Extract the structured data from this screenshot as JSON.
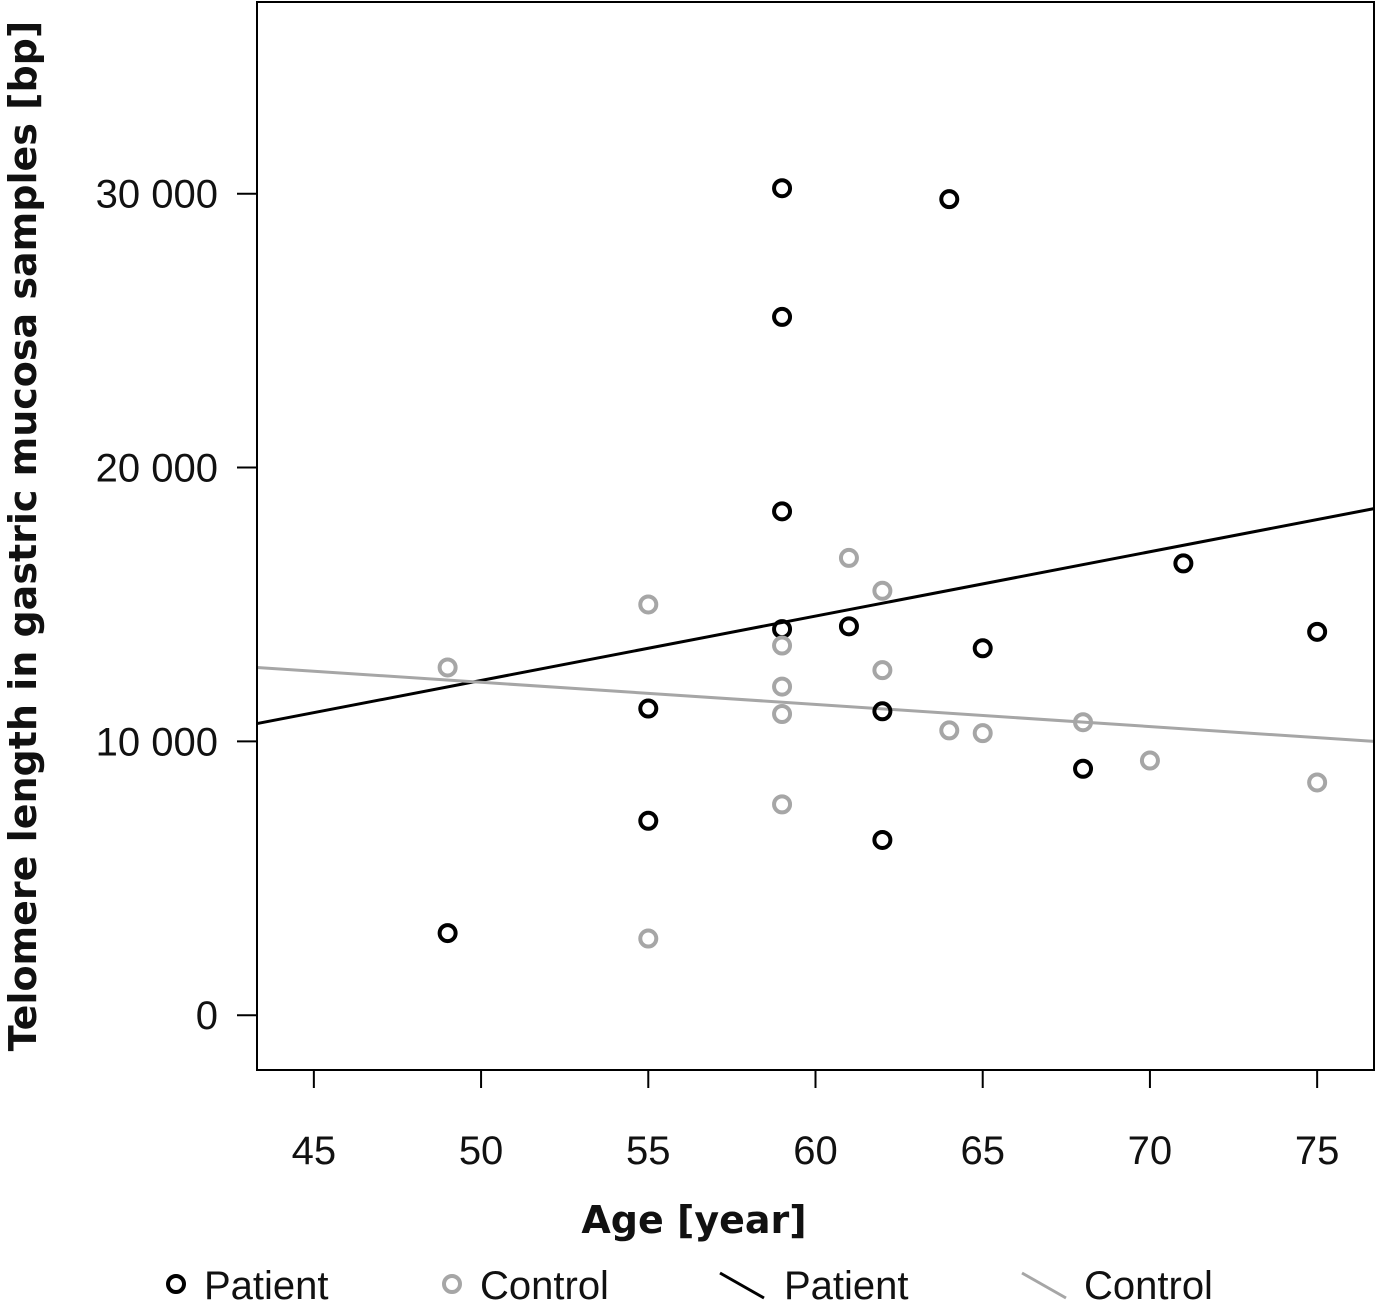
{
  "chart_data": {
    "type": "scatter",
    "xlabel": "Age [year]",
    "ylabel": "Telomere length in gastric mucosa samples [bp]",
    "xlim": [
      43.3,
      76.7
    ],
    "ylim": [
      -2000,
      37000
    ],
    "xticks": [
      45,
      50,
      55,
      60,
      65,
      70,
      75
    ],
    "xtick_labels": [
      "45",
      "50",
      "55",
      "60",
      "65",
      "70",
      "75"
    ],
    "yticks": [
      0,
      10000,
      20000,
      30000
    ],
    "ytick_labels": [
      "0",
      "10 000",
      "20 000",
      "30 000"
    ],
    "grid": false,
    "legend_position": "bottom",
    "series": [
      {
        "name": "Patient",
        "kind": "points",
        "color": "#000000",
        "points": [
          [
            49,
            3000
          ],
          [
            55,
            7100
          ],
          [
            55,
            11200
          ],
          [
            59,
            30200
          ],
          [
            59,
            25500
          ],
          [
            59,
            18400
          ],
          [
            59,
            14100
          ],
          [
            61,
            14200
          ],
          [
            62,
            11100
          ],
          [
            62,
            6400
          ],
          [
            64,
            29800
          ],
          [
            65,
            13400
          ],
          [
            68,
            9000
          ],
          [
            71,
            16500
          ],
          [
            75,
            14000
          ]
        ]
      },
      {
        "name": "Control",
        "kind": "points",
        "color": "#a6a6a6",
        "points": [
          [
            49,
            12700
          ],
          [
            55,
            15000
          ],
          [
            55,
            2800
          ],
          [
            59,
            13500
          ],
          [
            59,
            12000
          ],
          [
            59,
            11000
          ],
          [
            59,
            7700
          ],
          [
            61,
            16700
          ],
          [
            62,
            15500
          ],
          [
            62,
            12600
          ],
          [
            64,
            10400
          ],
          [
            65,
            10300
          ],
          [
            68,
            10700
          ],
          [
            70,
            9300
          ],
          [
            75,
            8500
          ]
        ]
      },
      {
        "name": "Patient",
        "kind": "fit-line",
        "color": "#000000",
        "x": [
          43.3,
          76.7
        ],
        "y": [
          10650,
          18500
        ]
      },
      {
        "name": "Control",
        "kind": "fit-line",
        "color": "#a6a6a6",
        "x": [
          43.3,
          76.7
        ],
        "y": [
          12700,
          10000
        ]
      }
    ],
    "legend": [
      {
        "label": "Patient",
        "symbol": "circle",
        "color": "#000000"
      },
      {
        "label": "Control",
        "symbol": "circle",
        "color": "#a6a6a6"
      },
      {
        "label": "Patient",
        "symbol": "line",
        "color": "#000000"
      },
      {
        "label": "Control",
        "symbol": "line",
        "color": "#a6a6a6"
      }
    ]
  }
}
